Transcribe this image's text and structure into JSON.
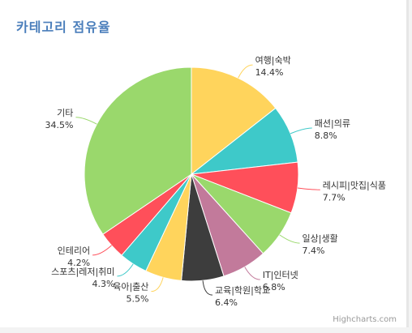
{
  "chart_data": {
    "type": "pie",
    "title": "카테고리 점유율",
    "slices": [
      {
        "name": "여행|숙박",
        "value": 14.4,
        "label": "14.4%",
        "color": "#ffd45c"
      },
      {
        "name": "패션|의류",
        "value": 8.8,
        "label": "8.8%",
        "color": "#3ec9c9"
      },
      {
        "name": "레시피|맛집|식품",
        "value": 7.7,
        "label": "7.7%",
        "color": "#ff4f5a"
      },
      {
        "name": "일상|생활",
        "value": 7.4,
        "label": "7.4%",
        "color": "#9ad86c"
      },
      {
        "name": "IT|인터넷",
        "value": 6.8,
        "label": "6.8%",
        "color": "#c27a9b"
      },
      {
        "name": "교육|학원|학교",
        "value": 6.4,
        "label": "6.4%",
        "color": "#3d3d3d"
      },
      {
        "name": "육아|출산",
        "value": 5.5,
        "label": "5.5%",
        "color": "#ffd45c"
      },
      {
        "name": "스포츠|레저|취미",
        "value": 4.3,
        "label": "4.3%",
        "color": "#3ec9c9"
      },
      {
        "name": "인테리어",
        "value": 4.2,
        "label": "4.2%",
        "color": "#ff4f5a"
      },
      {
        "name": "기타",
        "value": 34.5,
        "label": "34.5%",
        "color": "#9ad86c"
      }
    ],
    "start_angle": "12 o'clock, clockwise",
    "data_labels": "outside with connector lines"
  },
  "credits": "Highcharts.com"
}
